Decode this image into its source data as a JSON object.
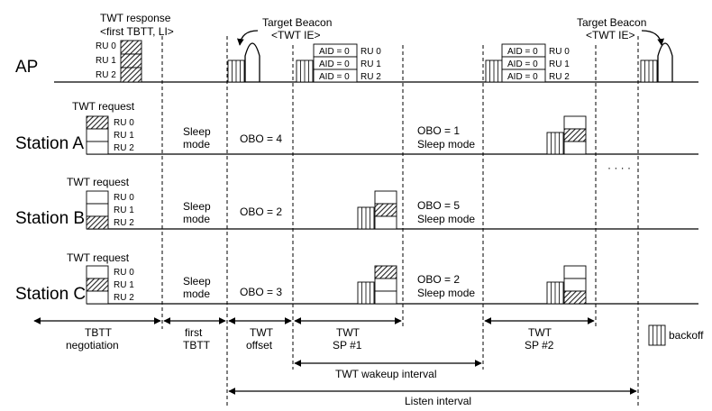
{
  "rows": {
    "ap": "AP",
    "station_a": "Station A",
    "station_b": "Station B",
    "station_c": "Station C"
  },
  "ap_labels": {
    "twt_response_line1": "TWT response",
    "twt_response_line2": "<first TBTT, LI>",
    "target_beacon_line1": "Target Beacon",
    "target_beacon_line2": "<TWT IE>",
    "target_beacon2_line1": "Target Beacon",
    "target_beacon2_line2": "<TWT IE>",
    "aid_label": "AID = 0"
  },
  "ru_labels": [
    "RU 0",
    "RU 1",
    "RU 2"
  ],
  "station_labels": {
    "twt_request": "TWT request",
    "sleep_mode_line1": "Sleep",
    "sleep_mode_line2": "mode",
    "a_obo_first": "OBO = 4",
    "a_obo_second": "OBO = 1",
    "b_obo_first": "OBO = 2",
    "b_obo_second": "OBO = 5",
    "c_obo_first": "OBO = 3",
    "c_obo_second": "OBO = 2",
    "sleep_mode_inline": "Sleep mode",
    "ellipsis": "· · · ·"
  },
  "timeline": {
    "tbtt_line1": "TBTT",
    "tbtt_line2": "negotiation",
    "first_tbtt_line1": "first",
    "first_tbtt_line2": "TBTT",
    "twt_offset_line1": "TWT",
    "twt_offset_line2": "offset",
    "sp1_line1": "TWT",
    "sp1_line2": "SP #1",
    "sp2_line1": "TWT",
    "sp2_line2": "SP #2",
    "wakeup_interval": "TWT wakeup interval",
    "listen_interval": "Listen interval"
  },
  "legend": {
    "backoff": "backoff"
  },
  "colors": {
    "line": "#000000",
    "hatch_fill": "#555555",
    "background": "#ffffff"
  }
}
